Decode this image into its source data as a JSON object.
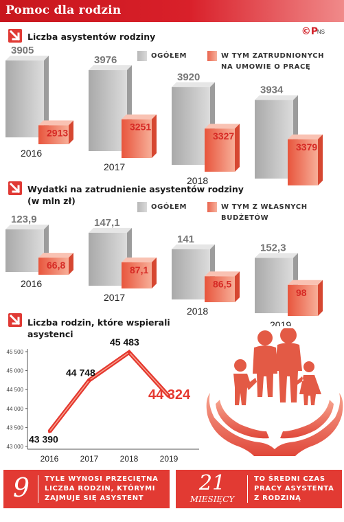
{
  "header": {
    "title": "Pomoc dla rodzin",
    "logo": "©P",
    "source": "NS"
  },
  "section1": {
    "heading": "Liczba asystentów rodziny",
    "legend_total": "OGÓŁEM",
    "legend_sub_line1": "W TYM ZATRUDNIONYCH",
    "legend_sub_line2": "NA UMOWIE  O PRACĘ"
  },
  "section2": {
    "heading_line1": "Wydatki na zatrudnienie asystentów rodziny",
    "heading_line2": "(w mln zł)",
    "legend_total": "OGÓŁEM",
    "legend_sub_line1": "W TYM Z WŁASNYCH",
    "legend_sub_line2": "BUDŻETÓW"
  },
  "section3": {
    "heading_line1": "Liczba rodzin, które wspierali",
    "heading_line2": "asystenci"
  },
  "chart_data": [
    {
      "type": "bar",
      "title": "Liczba asystentów rodziny",
      "categories": [
        "2016",
        "2017",
        "2018",
        "2019"
      ],
      "series": [
        {
          "name": "OGÓŁEM",
          "values": [
            3905,
            3976,
            3920,
            3934
          ]
        },
        {
          "name": "W TYM ZATRUDNIONYCH NA UMOWIE  O PRACĘ",
          "values": [
            2913,
            3251,
            3327,
            3379
          ]
        }
      ],
      "value_labels": [
        [
          "3905",
          "3976",
          "3920",
          "3934"
        ],
        [
          "2913",
          "3251",
          "3327",
          "3379"
        ]
      ]
    },
    {
      "type": "bar",
      "title": "Wydatki na zatrudnienie asystentów rodziny (w mln zł)",
      "categories": [
        "2016",
        "2017",
        "2018",
        "2019"
      ],
      "series": [
        {
          "name": "OGÓŁEM",
          "values": [
            123.9,
            147.1,
            141,
            152.3
          ]
        },
        {
          "name": "W TYM Z WŁASNYCH BUDŻETÓW",
          "values": [
            66.8,
            87.1,
            86.5,
            98
          ]
        }
      ],
      "value_labels": [
        [
          "123,9",
          "147,1",
          "141",
          "152,3"
        ],
        [
          "66,8",
          "87,1",
          "86,5",
          "98"
        ]
      ]
    },
    {
      "type": "line",
      "title": "Liczba rodzin, które wspierali asystenci",
      "x": [
        "2016",
        "2017",
        "2018",
        "2019"
      ],
      "series": [
        {
          "values": [
            43390,
            44748,
            45483,
            44324
          ]
        }
      ],
      "value_labels": [
        "43 390",
        "44 748",
        "45 483",
        "44 324"
      ],
      "ylim": [
        43000,
        45500
      ],
      "y_ticks": [
        "43 000",
        "43 500",
        "44 000",
        "44 500",
        "45 000",
        "45 500"
      ],
      "grid": false
    }
  ],
  "colors": {
    "accent_red": "#e03a35",
    "grey_bar": "#c8c8c8",
    "salmon_bar": "#f2856c",
    "label_red": "#d62a25"
  },
  "fact1": {
    "number": "9",
    "line1": "TYLE WYNOSI PRZECIĘTNA",
    "line2": "LICZBA RODZIN, KTÓRYMI",
    "line3": "ZAJMUJE SIĘ ASYSTENT"
  },
  "fact2": {
    "number": "21",
    "unit": "MIESIĘCY",
    "line1": "TO ŚREDNI CZAS",
    "line2": "PRACY ASYSTENTA",
    "line3": "Z RODZINĄ"
  },
  "icons": [
    "arrow-down-right-icon",
    "family-icon",
    "hands-icon"
  ]
}
